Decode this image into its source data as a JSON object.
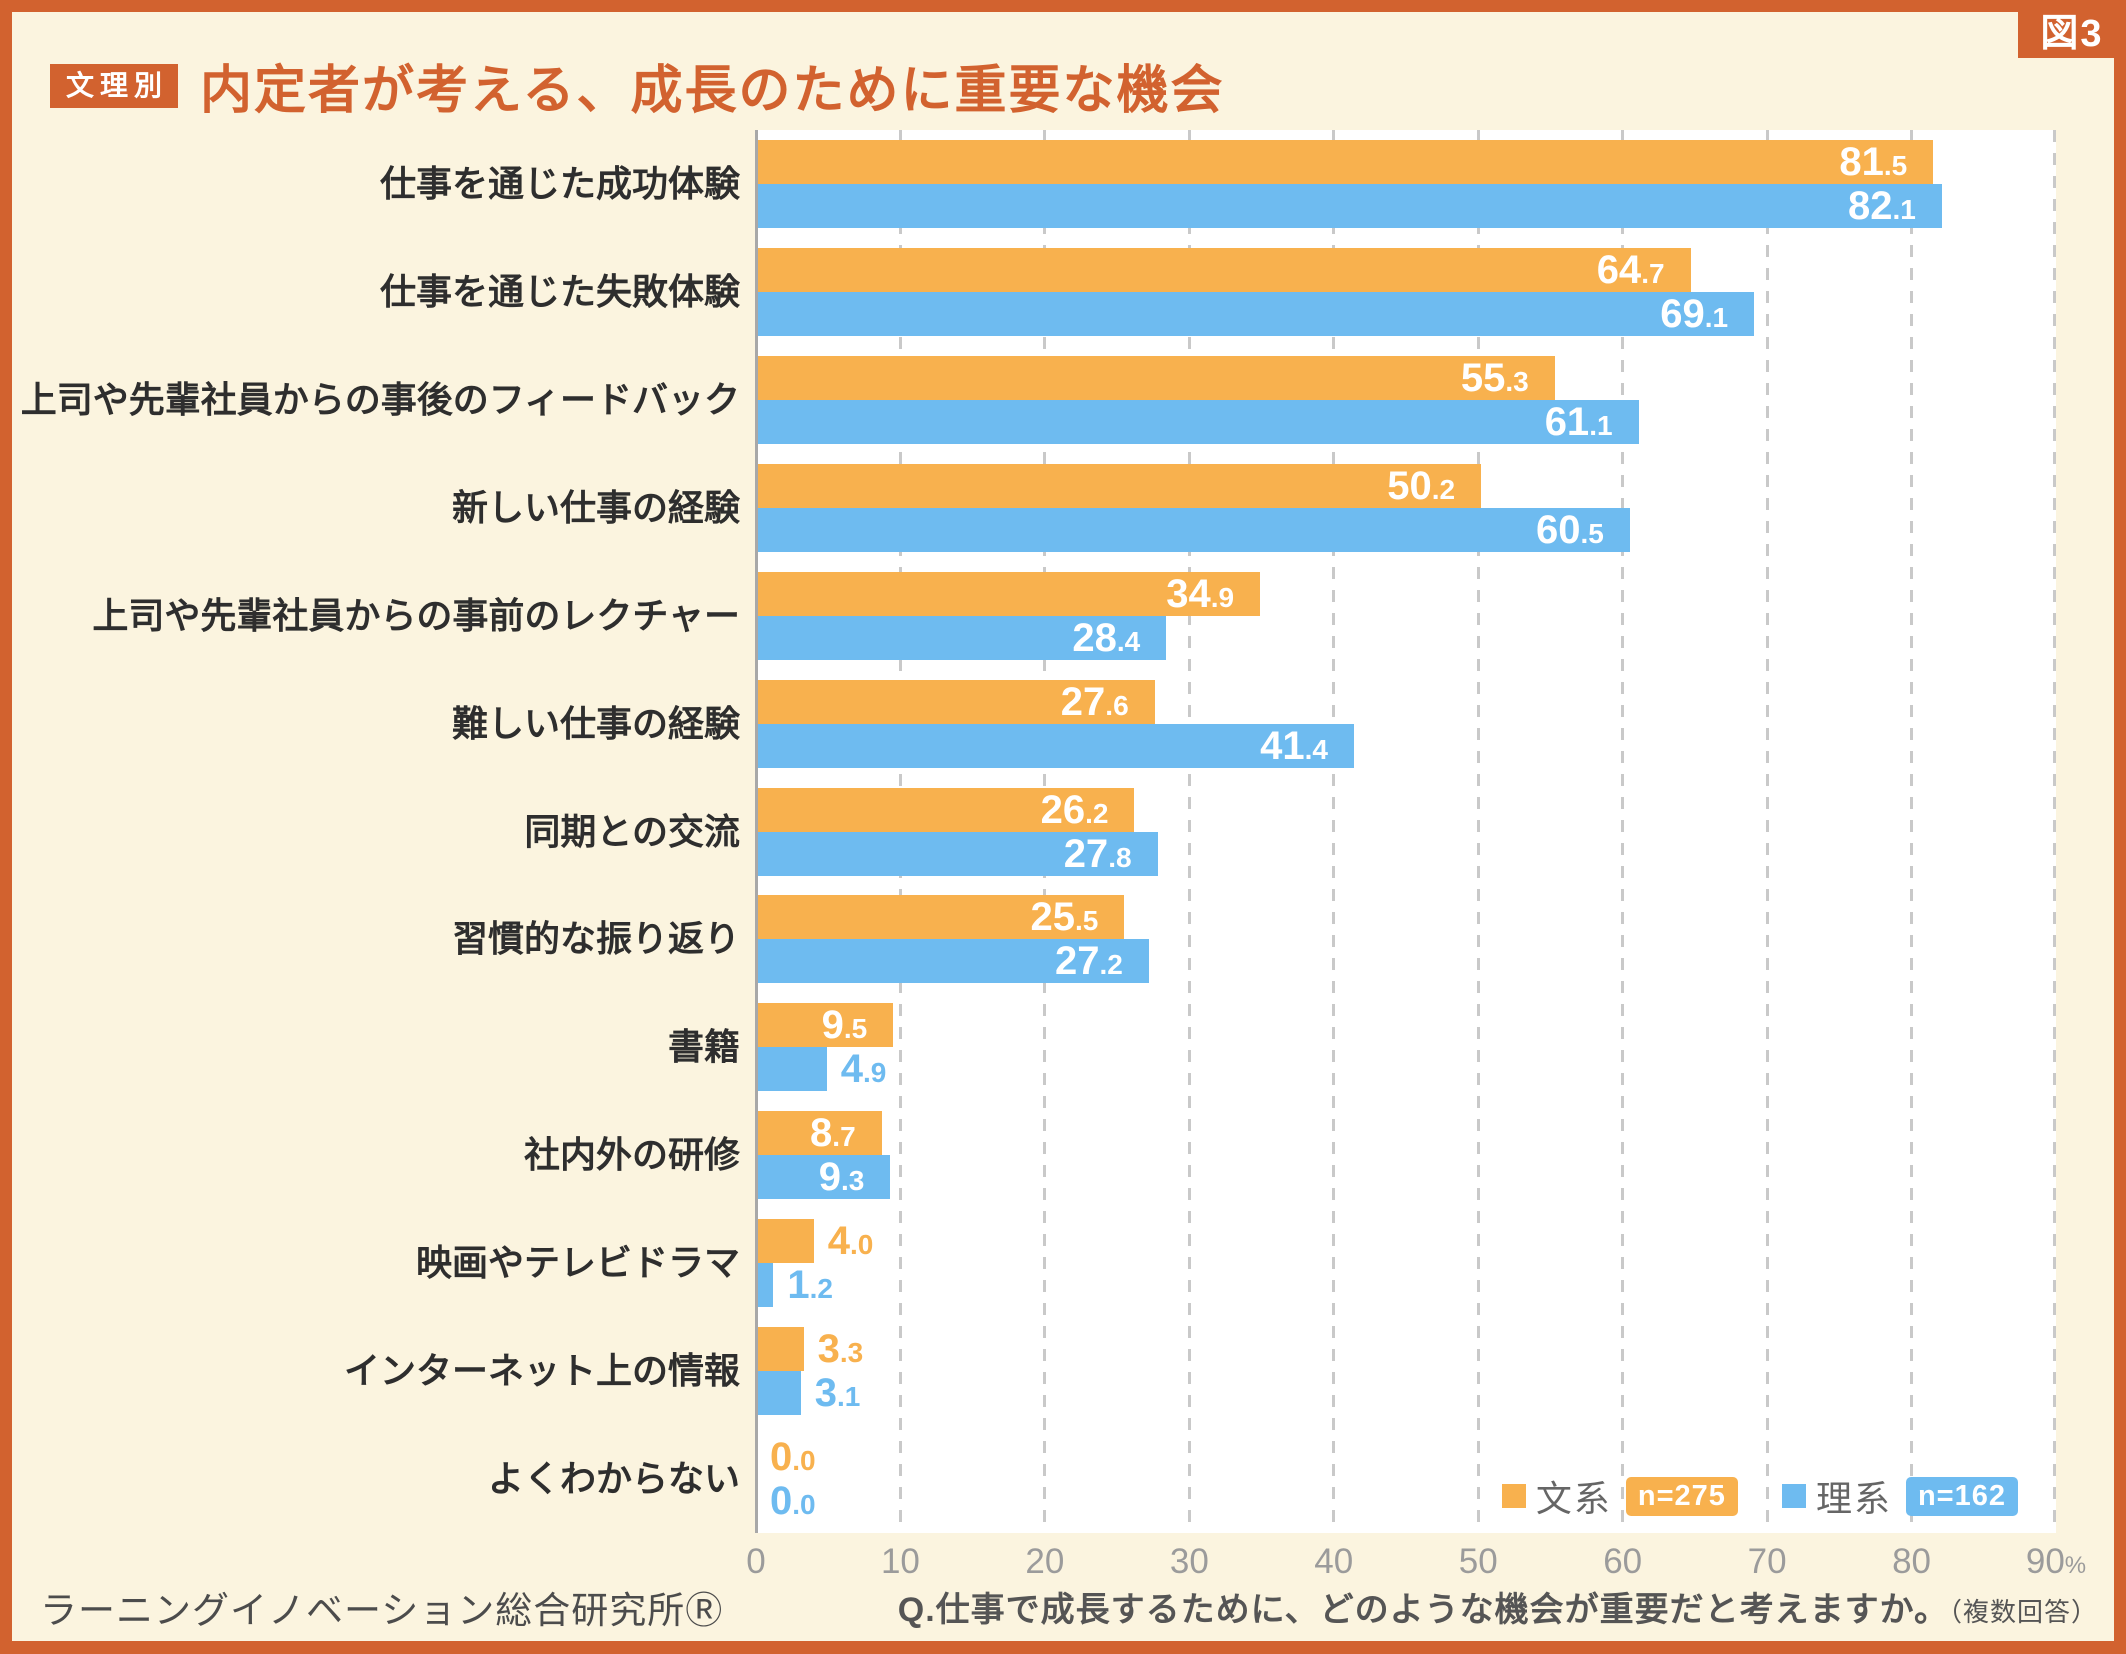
{
  "figure_tab": "図3",
  "header": {
    "badge": "文理別",
    "title": "内定者が考える、成長のために重要な機会"
  },
  "chart_data": {
    "type": "bar",
    "orientation": "horizontal",
    "title": "内定者が考える、成長のために重要な機会",
    "categories": [
      "仕事を通じた成功体験",
      "仕事を通じた失敗体験",
      "上司や先輩社員からの事後のフィードバック",
      "新しい仕事の経験",
      "上司や先輩社員からの事前のレクチャー",
      "難しい仕事の経験",
      "同期との交流",
      "習慣的な振り返り",
      "書籍",
      "社内外の研修",
      "映画やテレビドラマ",
      "インターネット上の情報",
      "よくわからない"
    ],
    "series": [
      {
        "name": "文系",
        "n_label": "n=275",
        "color_key": "bunkei",
        "values": [
          81.5,
          64.7,
          55.3,
          50.2,
          34.9,
          27.6,
          26.2,
          25.5,
          9.5,
          8.7,
          4.0,
          3.3,
          0.0
        ]
      },
      {
        "name": "理系",
        "n_label": "n=162",
        "color_key": "rikei",
        "values": [
          82.1,
          69.1,
          61.1,
          60.5,
          28.4,
          41.4,
          27.8,
          27.2,
          4.9,
          9.3,
          1.2,
          3.1,
          0.0
        ]
      }
    ],
    "xlim": [
      0,
      90
    ],
    "x_ticks": [
      "0",
      "10",
      "20",
      "30",
      "40",
      "50",
      "60",
      "70",
      "80"
    ],
    "x_last_tick": {
      "number": "90",
      "suffix": "%"
    },
    "grid": "dashed-vertical",
    "legend_position": "bottom-right-inside",
    "value_label_inside_threshold": 6
  },
  "footer": {
    "source": "ラーニングイノベーション総合研究所Ⓡ",
    "question": "Q.仕事で成長するために、どのような機会が重要だと考えますか。",
    "question_note": "（複数回答）"
  },
  "colors": {
    "frame": "#D2622F",
    "bg": "#FBF4DF",
    "plot": "#FFFFFF",
    "bunkei": "#F8B14E",
    "rikei": "#6EBBF0",
    "title": "#D2622F",
    "label": "#2E2E2E",
    "axis": "#9B9B9B",
    "grid": "#C9C9C9",
    "legend_text": "#666666",
    "footer_text": "#4C4C4C"
  }
}
